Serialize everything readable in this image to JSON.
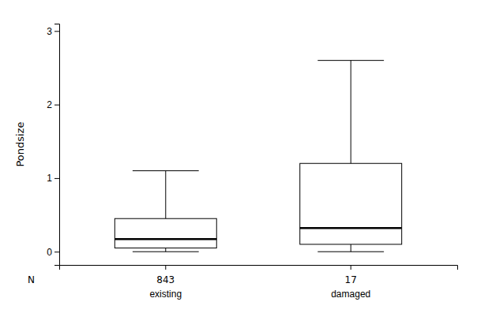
{
  "chart_data": {
    "type": "box",
    "ylabel": "Pondsize",
    "categories": [
      "existing",
      "damaged"
    ],
    "stats": [
      {
        "whisker_low": 0.0,
        "q1": 0.05,
        "median": 0.17,
        "q3": 0.45,
        "whisker_high": 1.1
      },
      {
        "whisker_low": 0.0,
        "q1": 0.1,
        "median": 0.32,
        "q3": 1.2,
        "whisker_high": 2.6
      }
    ],
    "n_label": "N",
    "n_counts": [
      843,
      17
    ],
    "color": "#ffffff",
    "ylim": [
      -0.18,
      3.1
    ],
    "yticks": [
      0,
      1,
      2,
      3
    ]
  }
}
